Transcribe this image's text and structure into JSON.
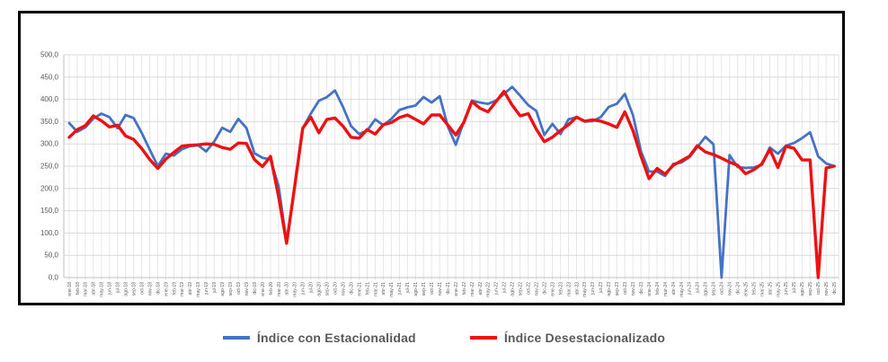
{
  "y_axis": {
    "labels": [
      "500,0",
      "450,0",
      "400,0",
      "350,0",
      "300,0",
      "250,0",
      "200,0",
      "150,0",
      "100,0",
      "50,0",
      "0,0"
    ],
    "min": 0,
    "max": 500,
    "step": 50,
    "label_color": "#595959"
  },
  "x_axis": {
    "label_color": "#595959",
    "labels": [
      "ene-18",
      "feb-18",
      "mar-18",
      "abr-18",
      "may-18",
      "jun-18",
      "jul-18",
      "ago-18",
      "sep-18",
      "oct-18",
      "nov-18",
      "dic-18",
      "ene-19",
      "feb-19",
      "mar-19",
      "abr-19",
      "may-19",
      "jun-19",
      "jul-19",
      "ago-19",
      "sep-19",
      "oct-19",
      "nov-19",
      "dic-19",
      "ene-20",
      "feb-20",
      "mar-20",
      "abr-20",
      "may-20",
      "jun-20",
      "jul-20",
      "ago-20",
      "sep-20",
      "oct-20",
      "nov-20",
      "dic-20",
      "ene-21",
      "feb-21",
      "mar-21",
      "abr-21",
      "may-21",
      "jun-21",
      "jul-21",
      "ago-21",
      "sep-21",
      "oct-21",
      "nov-21",
      "dic-21",
      "ene-22",
      "feb-22",
      "mar-22",
      "abr-22",
      "may-22",
      "jun-22",
      "jul-22",
      "ago-22",
      "sep-22",
      "oct-22",
      "nov-22",
      "dic-22",
      "ene-23",
      "feb-23",
      "mar-23",
      "abr-23",
      "may-23",
      "jun-23",
      "jul-23",
      "ago-23",
      "sep-23",
      "oct-23",
      "nov-23",
      "dic-23",
      "ene-24",
      "feb-24",
      "mar-24",
      "abr-24",
      "may-24",
      "jun-24",
      "jul-24",
      "ago-24",
      "sep-24",
      "oct-24",
      "nov-24",
      "dic-24",
      "ene-25",
      "feb-25",
      "mar-25",
      "abr-25",
      "may-25",
      "jun-25",
      "jul-25",
      "ago-25",
      "sep-25",
      "oct-25",
      "nov-25",
      "dic-25"
    ]
  },
  "grid": {
    "h_color": "#d9d9d9",
    "v_color": "#e7e7e7",
    "axis_color": "#bfbfbf"
  },
  "chart_data": {
    "type": "line",
    "title": "",
    "xlabel": "",
    "ylabel": "",
    "ylim": [
      0,
      500
    ],
    "grid": true,
    "legend_position": "bottom",
    "x": [
      "ene-18",
      "feb-18",
      "mar-18",
      "abr-18",
      "may-18",
      "jun-18",
      "jul-18",
      "ago-18",
      "sep-18",
      "oct-18",
      "nov-18",
      "dic-18",
      "ene-19",
      "feb-19",
      "mar-19",
      "abr-19",
      "may-19",
      "jun-19",
      "jul-19",
      "ago-19",
      "sep-19",
      "oct-19",
      "nov-19",
      "dic-19",
      "ene-20",
      "feb-20",
      "mar-20",
      "abr-20",
      "may-20",
      "jun-20",
      "jul-20",
      "ago-20",
      "sep-20",
      "oct-20",
      "nov-20",
      "dic-20",
      "ene-21",
      "feb-21",
      "mar-21",
      "abr-21",
      "may-21",
      "jun-21",
      "jul-21",
      "ago-21",
      "sep-21",
      "oct-21",
      "nov-21",
      "dic-21",
      "ene-22",
      "feb-22",
      "mar-22",
      "abr-22",
      "may-22",
      "jun-22",
      "jul-22",
      "ago-22",
      "sep-22",
      "oct-22",
      "nov-22",
      "dic-22",
      "ene-23",
      "feb-23",
      "mar-23",
      "abr-23",
      "may-23",
      "jun-23",
      "jul-23",
      "ago-23",
      "sep-23",
      "oct-23",
      "nov-23",
      "dic-23",
      "ene-24",
      "feb-24",
      "mar-24",
      "abr-24",
      "may-24",
      "jun-24",
      "jul-24",
      "ago-24",
      "sep-24",
      "oct-24",
      "nov-24",
      "dic-24",
      "ene-25",
      "feb-25",
      "mar-25",
      "abr-25",
      "may-25",
      "jun-25",
      "jul-25",
      "ago-25",
      "sep-25",
      "oct-25",
      "nov-25",
      "dic-25"
    ],
    "series": [
      {
        "name": "Índice con Estacionalidad",
        "color": "#4472c4",
        "width": 2.8,
        "values": [
          347,
          327,
          337,
          357,
          368,
          360,
          335,
          365,
          358,
          325,
          287,
          250,
          278,
          274,
          288,
          295,
          297,
          283,
          305,
          336,
          327,
          356,
          336,
          279,
          269,
          265,
          205,
          78,
          205,
          335,
          368,
          397,
          405,
          420,
          383,
          340,
          322,
          330,
          355,
          342,
          356,
          376,
          382,
          386,
          405,
          393,
          407,
          340,
          298,
          350,
          397,
          393,
          390,
          397,
          412,
          428,
          408,
          387,
          374,
          320,
          345,
          322,
          355,
          360,
          350,
          351,
          360,
          383,
          390,
          412,
          365,
          283,
          238,
          238,
          228,
          255,
          258,
          270,
          293,
          316,
          299,
          0,
          275,
          248,
          246,
          247,
          253,
          292,
          278,
          296,
          302,
          313,
          326,
          272,
          256,
          250
        ]
      },
      {
        "name": "Índice Desestacionalizado",
        "color": "#ee1111",
        "width": 3.4,
        "values": [
          315,
          332,
          341,
          363,
          352,
          338,
          342,
          318,
          310,
          290,
          265,
          245,
          266,
          281,
          295,
          297,
          298,
          300,
          299,
          292,
          288,
          302,
          301,
          265,
          249,
          272,
          181,
          77,
          205,
          335,
          360,
          325,
          355,
          358,
          340,
          315,
          313,
          332,
          322,
          343,
          348,
          359,
          365,
          355,
          345,
          365,
          365,
          343,
          320,
          348,
          395,
          380,
          372,
          395,
          418,
          387,
          363,
          368,
          333,
          305,
          315,
          330,
          343,
          360,
          351,
          354,
          351,
          345,
          337,
          372,
          330,
          272,
          222,
          245,
          232,
          252,
          262,
          272,
          296,
          282,
          276,
          268,
          259,
          252,
          233,
          242,
          255,
          288,
          247,
          295,
          290,
          264,
          264,
          0,
          246,
          250
        ]
      }
    ]
  }
}
